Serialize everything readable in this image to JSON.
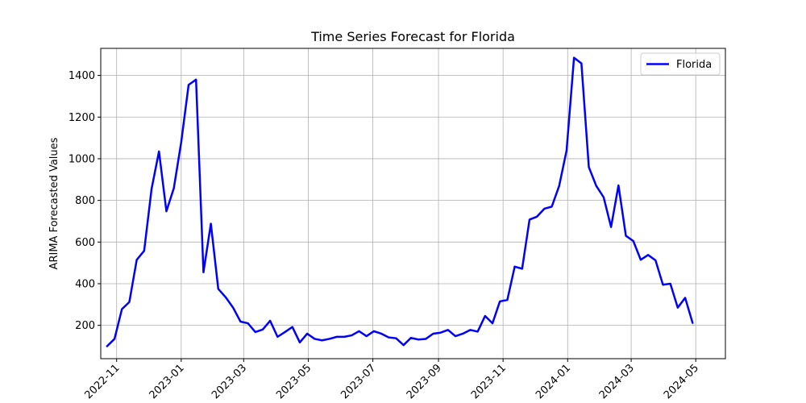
{
  "chart_data": {
    "type": "line",
    "title": "Time Series Forecast for Florida",
    "xlabel": "",
    "ylabel": "ARIMA Forecasted Values",
    "legend_position": "top-right",
    "grid": true,
    "x_ticks": [
      "2022-11",
      "2023-01",
      "2023-03",
      "2023-05",
      "2023-07",
      "2023-09",
      "2023-11",
      "2024-01",
      "2024-03",
      "2024-05"
    ],
    "y_ticks": [
      200,
      400,
      600,
      800,
      1000,
      1200,
      1400
    ],
    "xlim": [
      "2022-10-17",
      "2024-05-29"
    ],
    "ylim": [
      40,
      1530
    ],
    "series": [
      {
        "name": "Florida",
        "color": "#0000ff",
        "points": [
          [
            "2022-10-23",
            100
          ],
          [
            "2022-10-30",
            135
          ],
          [
            "2022-11-06",
            278
          ],
          [
            "2022-11-13",
            312
          ],
          [
            "2022-11-20",
            515
          ],
          [
            "2022-11-27",
            558
          ],
          [
            "2022-12-04",
            855
          ],
          [
            "2022-12-11",
            1035
          ],
          [
            "2022-12-18",
            748
          ],
          [
            "2022-12-25",
            858
          ],
          [
            "2023-01-01",
            1080
          ],
          [
            "2023-01-08",
            1355
          ],
          [
            "2023-01-15",
            1380
          ],
          [
            "2023-01-22",
            455
          ],
          [
            "2023-01-29",
            688
          ],
          [
            "2023-02-05",
            375
          ],
          [
            "2023-02-12",
            335
          ],
          [
            "2023-02-19",
            285
          ],
          [
            "2023-02-26",
            218
          ],
          [
            "2023-03-05",
            210
          ],
          [
            "2023-03-12",
            168
          ],
          [
            "2023-03-19",
            180
          ],
          [
            "2023-03-26",
            222
          ],
          [
            "2023-04-02",
            145
          ],
          [
            "2023-04-09",
            168
          ],
          [
            "2023-04-16",
            192
          ],
          [
            "2023-04-23",
            118
          ],
          [
            "2023-04-30",
            160
          ],
          [
            "2023-05-07",
            135
          ],
          [
            "2023-05-14",
            128
          ],
          [
            "2023-05-21",
            135
          ],
          [
            "2023-05-28",
            145
          ],
          [
            "2023-06-04",
            145
          ],
          [
            "2023-06-11",
            152
          ],
          [
            "2023-06-18",
            172
          ],
          [
            "2023-06-25",
            148
          ],
          [
            "2023-07-02",
            172
          ],
          [
            "2023-07-09",
            160
          ],
          [
            "2023-07-16",
            142
          ],
          [
            "2023-07-23",
            138
          ],
          [
            "2023-07-30",
            105
          ],
          [
            "2023-08-06",
            140
          ],
          [
            "2023-08-13",
            132
          ],
          [
            "2023-08-20",
            135
          ],
          [
            "2023-08-27",
            160
          ],
          [
            "2023-09-03",
            165
          ],
          [
            "2023-09-10",
            178
          ],
          [
            "2023-09-17",
            148
          ],
          [
            "2023-09-24",
            160
          ],
          [
            "2023-10-01",
            178
          ],
          [
            "2023-10-08",
            170
          ],
          [
            "2023-10-15",
            245
          ],
          [
            "2023-10-22",
            210
          ],
          [
            "2023-10-29",
            315
          ],
          [
            "2023-11-05",
            322
          ],
          [
            "2023-11-12",
            482
          ],
          [
            "2023-11-19",
            472
          ],
          [
            "2023-11-26",
            708
          ],
          [
            "2023-12-03",
            722
          ],
          [
            "2023-12-10",
            760
          ],
          [
            "2023-12-17",
            770
          ],
          [
            "2023-12-24",
            870
          ],
          [
            "2023-12-31",
            1040
          ],
          [
            "2024-01-07",
            1485
          ],
          [
            "2024-01-14",
            1458
          ],
          [
            "2024-01-21",
            960
          ],
          [
            "2024-01-28",
            870
          ],
          [
            "2024-02-04",
            815
          ],
          [
            "2024-02-11",
            672
          ],
          [
            "2024-02-18",
            872
          ],
          [
            "2024-02-25",
            630
          ],
          [
            "2024-03-03",
            605
          ],
          [
            "2024-03-10",
            515
          ],
          [
            "2024-03-17",
            538
          ],
          [
            "2024-03-24",
            512
          ],
          [
            "2024-03-31",
            395
          ],
          [
            "2024-04-07",
            400
          ],
          [
            "2024-04-14",
            285
          ],
          [
            "2024-04-21",
            332
          ],
          [
            "2024-04-28",
            212
          ]
        ]
      }
    ]
  }
}
